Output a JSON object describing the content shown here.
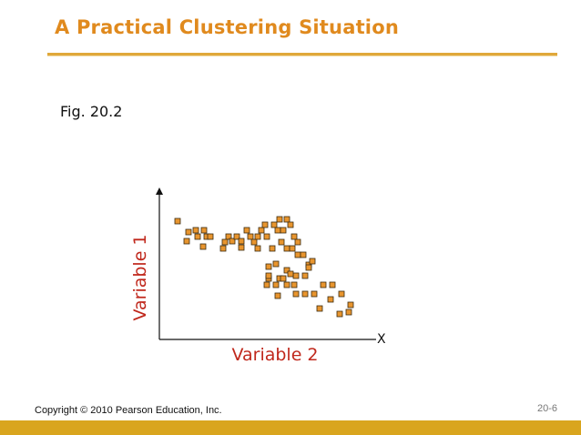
{
  "slide": {
    "title": "A Practical Clustering Situation",
    "figure_label": "Fig. 20.2",
    "copyright": "Copyright © 2010 Pearson Education, Inc.",
    "page_number": "20-6"
  },
  "colors": {
    "title": "#e08a1e",
    "rule": "#e0a83a",
    "footer_bar": "#d9a51e",
    "axis_label": "#c0281c",
    "marker_fill": "#e8952e",
    "marker_stroke": "#3a2a10"
  },
  "chart_data": {
    "type": "scatter",
    "xlabel": "Variable 2",
    "ylabel": "Variable 1",
    "x_axis_end_label": "X",
    "xlim": [
      0,
      240
    ],
    "ylim": [
      0,
      160
    ],
    "grid": false,
    "points": [
      [
        20,
        130
      ],
      [
        32,
        118
      ],
      [
        30,
        108
      ],
      [
        40,
        120
      ],
      [
        42,
        113
      ],
      [
        48,
        102
      ],
      [
        52,
        113
      ],
      [
        49,
        120
      ],
      [
        56,
        113
      ],
      [
        76,
        113
      ],
      [
        72,
        107
      ],
      [
        70,
        100
      ],
      [
        80,
        108
      ],
      [
        85,
        113
      ],
      [
        90,
        108
      ],
      [
        90,
        101
      ],
      [
        96,
        120
      ],
      [
        100,
        113
      ],
      [
        104,
        107
      ],
      [
        108,
        100
      ],
      [
        112,
        120
      ],
      [
        118,
        113
      ],
      [
        124,
        100
      ],
      [
        126,
        126
      ],
      [
        130,
        120
      ],
      [
        132,
        132
      ],
      [
        136,
        120
      ],
      [
        140,
        132
      ],
      [
        144,
        126
      ],
      [
        148,
        113
      ],
      [
        134,
        107
      ],
      [
        140,
        100
      ],
      [
        152,
        107
      ],
      [
        152,
        93
      ],
      [
        158,
        93
      ],
      [
        164,
        82
      ],
      [
        168,
        86
      ],
      [
        164,
        79
      ],
      [
        160,
        70
      ],
      [
        150,
        70
      ],
      [
        140,
        76
      ],
      [
        132,
        67
      ],
      [
        128,
        83
      ],
      [
        120,
        80
      ],
      [
        120,
        67
      ],
      [
        128,
        60
      ],
      [
        118,
        60
      ],
      [
        120,
        70
      ],
      [
        136,
        67
      ],
      [
        144,
        72
      ],
      [
        150,
        50
      ],
      [
        160,
        50
      ],
      [
        170,
        50
      ],
      [
        130,
        48
      ],
      [
        180,
        60
      ],
      [
        190,
        60
      ],
      [
        188,
        44
      ],
      [
        176,
        34
      ],
      [
        200,
        50
      ],
      [
        210,
        38
      ],
      [
        198,
        28
      ],
      [
        208,
        30
      ],
      [
        108,
        113
      ],
      [
        116,
        126
      ],
      [
        146,
        100
      ],
      [
        148,
        60
      ],
      [
        140,
        60
      ]
    ]
  }
}
